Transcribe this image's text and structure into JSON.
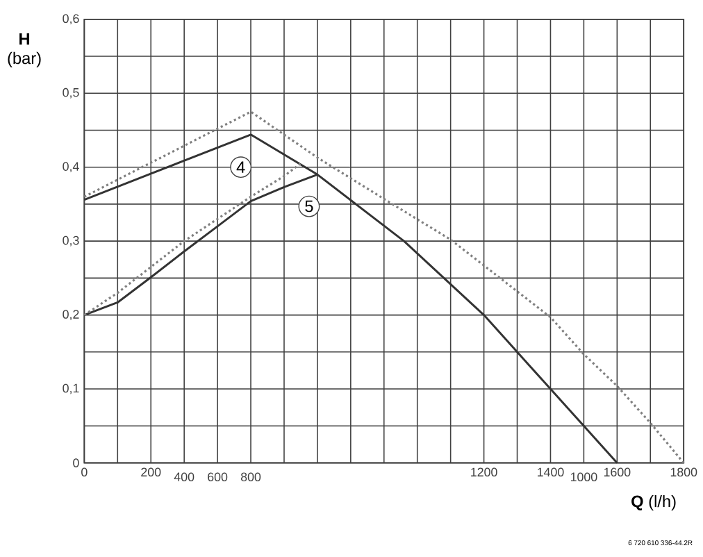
{
  "chart_data": {
    "type": "line",
    "xlabel": "**Q** (l/h)",
    "ylabel": "**H** (bar)",
    "xlim": [
      0,
      1800
    ],
    "ylim": [
      0,
      0.6
    ],
    "xticks": [
      0,
      {
        "value": 100,
        "label": null
      },
      200,
      {
        "value": 300,
        "label": null
      },
      {
        "value": 400,
        "label": null
      },
      {
        "value": 500,
        "label": null
      },
      {
        "value": 600,
        "label": null
      },
      {
        "value": 700,
        "label": null
      },
      {
        "value": 800,
        "label": null
      },
      {
        "value": 900,
        "label": null
      },
      {
        "value": 1000,
        "label": null
      },
      {
        "value": 1100,
        "label": null
      },
      1200,
      {
        "value": 1300,
        "label": null
      },
      1400,
      {
        "value": 1500,
        "label": null
      },
      1600,
      {
        "value": 1700,
        "label": null
      },
      1800
    ],
    "yticks": [
      0,
      {
        "value": 0.05,
        "label": null
      },
      {
        "value": 0.1,
        "label": "0,1"
      },
      {
        "value": 0.15,
        "label": null
      },
      {
        "value": 0.2,
        "label": "0,2"
      },
      {
        "value": 0.25,
        "label": null
      },
      {
        "value": 0.3,
        "label": "0,3"
      },
      {
        "value": 0.35,
        "label": null
      },
      {
        "value": 0.4,
        "label": "0,4"
      },
      {
        "value": 0.45,
        "label": null
      },
      {
        "value": 0.5,
        "label": "0,5"
      },
      {
        "value": 0.55,
        "label": null
      },
      {
        "value": 0.6,
        "label": "0,6"
      }
    ],
    "grid": true,
    "series": [
      {
        "color": "#333333",
        "line_style": "solid",
        "x": [
          0,
          500,
          700,
          960,
          1200,
          1300,
          1400,
          1500,
          1600
        ],
        "values": [
          0.356,
          0.444,
          0.39,
          0.3,
          0.2,
          0.15,
          0.1,
          0.05,
          0
        ]
      },
      {
        "color": "#333333",
        "line_style": "solid",
        "x": [
          0,
          100,
          200,
          300,
          400,
          500,
          600,
          700
        ],
        "values": [
          0.2,
          0.217,
          0.251,
          0.286,
          0.32,
          0.354,
          0.373,
          0.39
        ]
      },
      {
        "color": "#808080",
        "line_style": "dotted",
        "x": [
          0,
          500,
          700,
          900,
          1100,
          1400,
          1500,
          1600,
          1700,
          1800
        ],
        "values": [
          0.36,
          0.475,
          0.413,
          0.357,
          0.302,
          0.197,
          0.147,
          0.104,
          0.054,
          0
        ]
      },
      {
        "color": "#808080",
        "line_style": "dotted",
        "x": [
          0,
          100,
          200,
          300,
          400,
          500,
          600,
          650
        ],
        "values": [
          0.2,
          0.23,
          0.265,
          0.3,
          0.33,
          0.36,
          0.388,
          0.405
        ]
      }
    ],
    "annotations": [
      {
        "text": "4",
        "x": 470,
        "y": 0.4
      },
      {
        "text": "5",
        "x": 675,
        "y": 0.347
      },
      "400",
      "600",
      "800",
      "1000",
      "6 720 610 336-44.2R"
    ]
  }
}
